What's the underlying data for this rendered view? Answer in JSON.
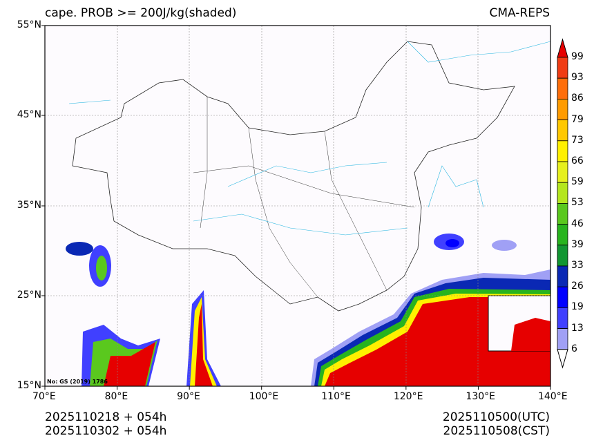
{
  "title_left": "cape. PROB >= 200J/kg(shaded)",
  "title_right": "CMA-REPS",
  "lat_ticks": [
    "55°N",
    "45°N",
    "35°N",
    "25°N",
    "15°N"
  ],
  "lon_ticks": [
    "70°E",
    "80°E",
    "90°E",
    "100°E",
    "110°E",
    "120°E",
    "130°E",
    "140°E"
  ],
  "map_extent": {
    "lon": [
      70,
      140
    ],
    "lat": [
      15,
      55
    ]
  },
  "footer_left": [
    "2025110218  +  054h",
    "2025110302  +  054h"
  ],
  "footer_right": [
    "2025110500(UTC)",
    "2025110508(CST)"
  ],
  "map_note": "No: GS (2019) 1786",
  "colorbar": {
    "levels": [
      "99",
      "93",
      "86",
      "79",
      "73",
      "66",
      "59",
      "53",
      "46",
      "39",
      "33",
      "26",
      "19",
      "13",
      "6"
    ],
    "colors": [
      "#e60000",
      "#f03c14",
      "#ff6e0a",
      "#ff9b00",
      "#ffc800",
      "#fff000",
      "#e6f01e",
      "#b4e61e",
      "#5ac81e",
      "#28b41e",
      "#129632",
      "#0a28b4",
      "#0000ff",
      "#4040ff",
      "#a0a0f5"
    ]
  }
}
